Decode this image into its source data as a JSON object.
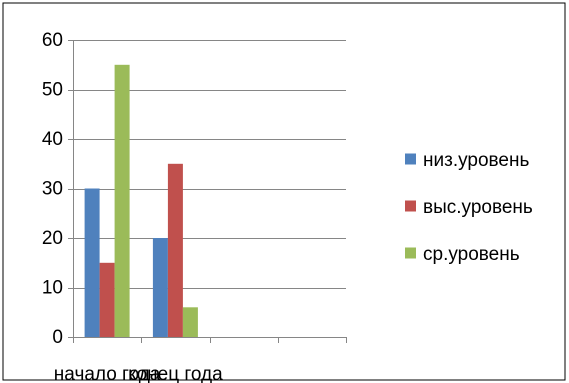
{
  "chart_data": {
    "type": "bar",
    "categories": [
      "начало года",
      "конец года",
      "",
      ""
    ],
    "series": [
      {
        "name": "низ.уровень",
        "values": [
          30,
          20,
          null,
          null
        ],
        "color": "#4F81BD"
      },
      {
        "name": "выс.уровень",
        "values": [
          15,
          35,
          null,
          null
        ],
        "color": "#C0504D"
      },
      {
        "name": "ср.уровень",
        "values": [
          55,
          6,
          null,
          null
        ],
        "color": "#9BBB59"
      }
    ],
    "title": "",
    "xlabel": "",
    "ylabel": "",
    "ylim": [
      0,
      60
    ],
    "yticks": [
      0,
      10,
      20,
      30,
      40,
      50,
      60
    ],
    "grid": true,
    "legend_position": "right",
    "gridline_color": "#868686",
    "axis_color": "#868686",
    "frame_color": "#000000"
  }
}
